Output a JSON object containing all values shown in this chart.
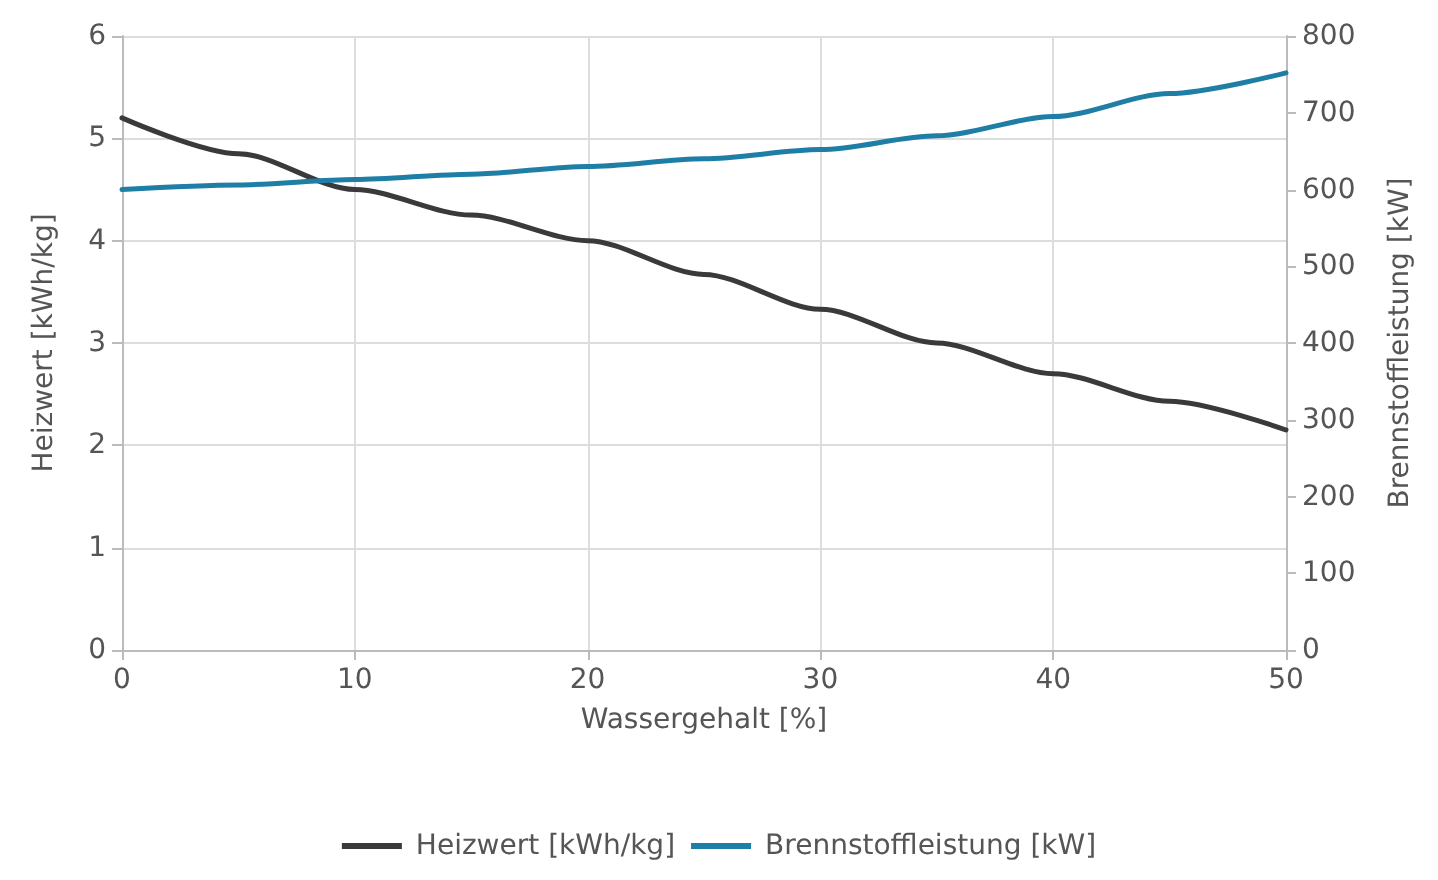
{
  "chart_data": {
    "type": "line",
    "x": [
      0,
      5,
      10,
      15,
      20,
      25,
      30,
      35,
      40,
      45,
      50
    ],
    "series": [
      {
        "name": "Heizwert [kWh/kg]",
        "color": "#3a3a3c",
        "values": [
          5.2,
          4.85,
          4.5,
          4.25,
          4.0,
          3.67,
          3.33,
          3.0,
          2.7,
          2.43,
          2.15
        ]
      },
      {
        "name": "Brennstoffleistung [kW]",
        "color": "#1f7ea6",
        "axis": "y2",
        "values": [
          600,
          606,
          613,
          620,
          630,
          640,
          652,
          670,
          695,
          725,
          752
        ]
      }
    ],
    "xlabel": "Wassergehalt [%]",
    "ylabel": "Heizwert [kWh/kg]",
    "y2label": "Brennstoffleistung [kW]",
    "xlim": [
      0,
      50
    ],
    "xticks": [
      0,
      10,
      20,
      30,
      40,
      50
    ],
    "ylim": [
      0,
      6
    ],
    "yticks": [
      0,
      1,
      2,
      3,
      4,
      5,
      6
    ],
    "y2lim": [
      0,
      800
    ],
    "y2ticks": [
      0,
      100,
      200,
      300,
      400,
      500,
      600,
      700,
      800
    ],
    "grid": true,
    "legend": "bottom",
    "marker": "none",
    "line_style": "solid"
  }
}
